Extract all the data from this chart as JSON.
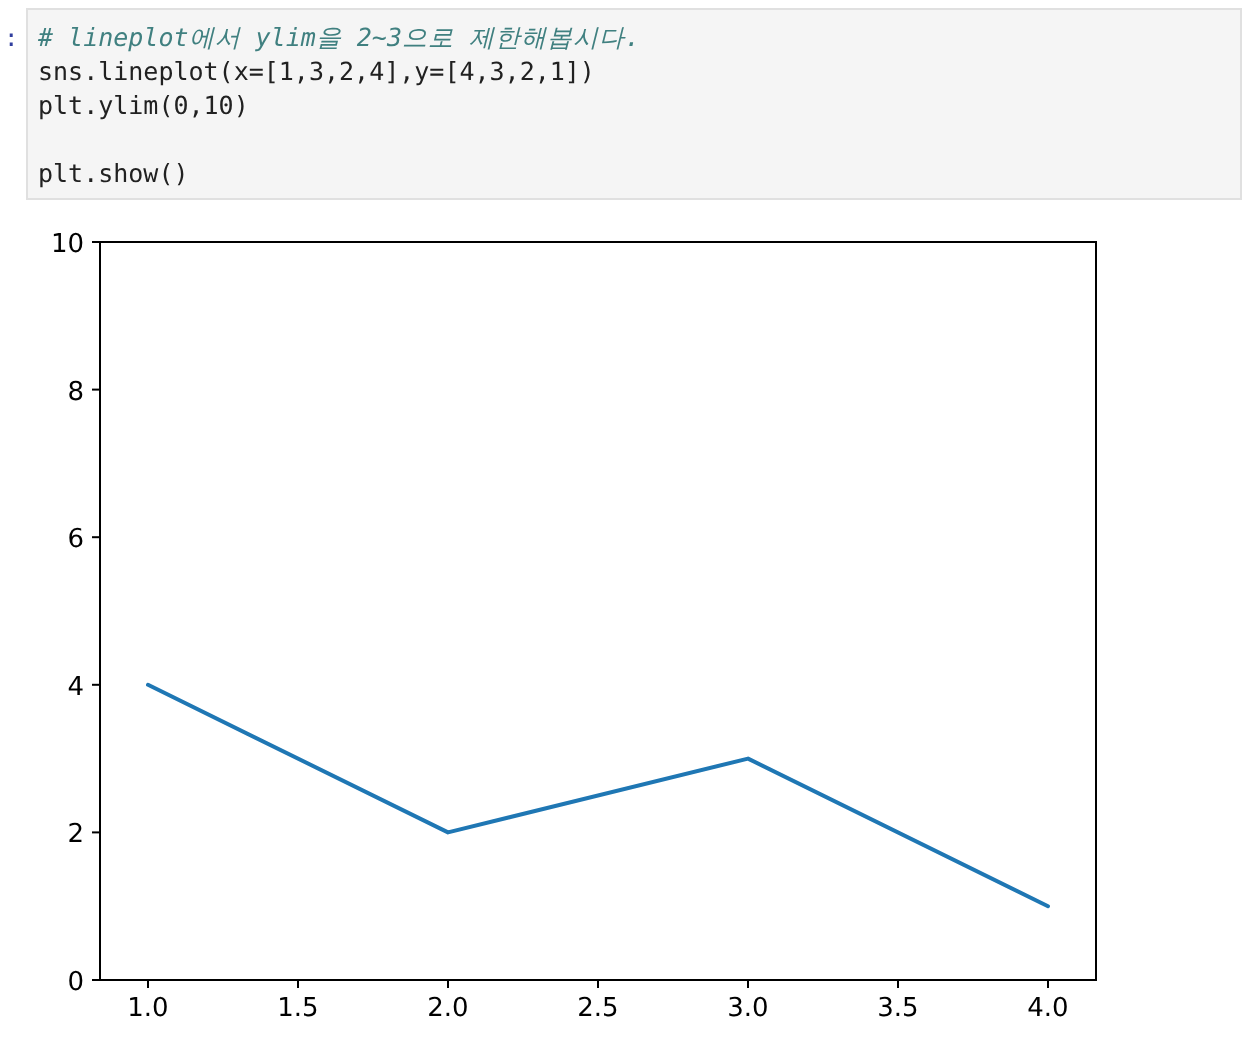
{
  "chart_data": {
    "type": "line",
    "annotations": [
      ":",
      "# lineplot에서 ylim을 2~3으로 제한해봅시다.\nsns.lineplot(x=[1,3,2,4],y=[4,3,2,1])\nplt.ylim(0,10)\n\nplt.show()"
    ],
    "x": [
      1,
      2,
      3,
      4
    ],
    "series": [
      {
        "color": "#1f77b4",
        "values": [
          4,
          2,
          3,
          1
        ]
      }
    ],
    "xlim": [
      0.84,
      4.16
    ],
    "xticks": [
      {
        "value": 1,
        "label": "1.0"
      },
      {
        "value": 1.5,
        "label": "1.5"
      },
      {
        "value": 2,
        "label": "2.0"
      },
      {
        "value": 2.5,
        "label": "2.5"
      },
      {
        "value": 3,
        "label": "3.0"
      },
      {
        "value": 3.5,
        "label": "3.5"
      },
      {
        "value": 4,
        "label": "4.0"
      }
    ],
    "ylim": [
      0,
      10
    ],
    "yticks": [
      0,
      2,
      4,
      6,
      8,
      10
    ],
    "grid": false,
    "marker": "none",
    "line_style": "solid"
  }
}
